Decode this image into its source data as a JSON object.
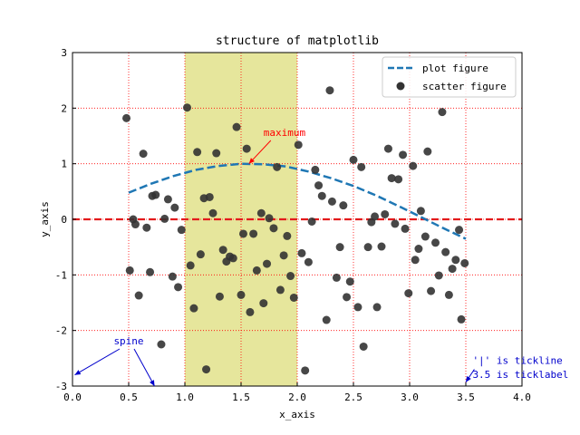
{
  "chart_data": {
    "type": "scatter",
    "title": "structure of matplotlib",
    "xlabel": "x_axis",
    "ylabel": "y_axis",
    "xlim": [
      0,
      4
    ],
    "ylim": [
      -3,
      3
    ],
    "xticks": [
      0.0,
      0.5,
      1.0,
      1.5,
      2.0,
      2.5,
      3.0,
      3.5,
      4.0
    ],
    "xtick_labels": [
      "0.0",
      "0.5",
      "1.0",
      "1.5",
      "2.0",
      "2.5",
      "3.0",
      "3.5",
      "4.0"
    ],
    "yticks": [
      -3,
      -2,
      -1,
      0,
      1,
      2,
      3
    ],
    "ytick_labels": [
      "-3",
      "-2",
      "-1",
      "0",
      "1",
      "2",
      "3"
    ],
    "grid": "dotted red",
    "span": {
      "x0": 1.0,
      "x1": 2.0,
      "color": "#e6e69c"
    },
    "hline": {
      "y": 0,
      "color": "#e31a1c",
      "style": "dashed"
    },
    "plot": {
      "name": "plot figure",
      "style": "dashed",
      "color": "#1f77b4",
      "x": [
        0.5,
        0.7,
        0.9,
        1.1,
        1.3,
        1.5,
        1.7,
        1.9,
        2.1,
        2.3,
        2.5,
        2.7,
        2.9,
        3.1,
        3.3,
        3.5
      ],
      "y": [
        0.48,
        0.64,
        0.78,
        0.89,
        0.96,
        1.0,
        0.99,
        0.95,
        0.86,
        0.74,
        0.6,
        0.43,
        0.24,
        0.04,
        -0.16,
        -0.35
      ]
    },
    "scatter": {
      "name": "scatter figure",
      "color": "#333333",
      "points": [
        [
          0.48,
          1.82
        ],
        [
          0.51,
          -0.92
        ],
        [
          0.54,
          0.0
        ],
        [
          0.56,
          -0.09
        ],
        [
          0.59,
          -1.37
        ],
        [
          0.63,
          1.18
        ],
        [
          0.66,
          -0.15
        ],
        [
          0.69,
          -0.95
        ],
        [
          0.71,
          0.42
        ],
        [
          0.74,
          0.44
        ],
        [
          0.79,
          -2.25
        ],
        [
          0.82,
          0.01
        ],
        [
          0.85,
          0.36
        ],
        [
          0.89,
          -1.03
        ],
        [
          0.91,
          0.21
        ],
        [
          0.94,
          -1.22
        ],
        [
          0.97,
          -0.19
        ],
        [
          1.02,
          2.01
        ],
        [
          1.05,
          -0.83
        ],
        [
          1.08,
          -1.6
        ],
        [
          1.11,
          1.21
        ],
        [
          1.14,
          -0.63
        ],
        [
          1.17,
          0.38
        ],
        [
          1.19,
          -2.7
        ],
        [
          1.22,
          0.4
        ],
        [
          1.25,
          0.11
        ],
        [
          1.28,
          1.19
        ],
        [
          1.31,
          -1.39
        ],
        [
          1.34,
          -0.55
        ],
        [
          1.37,
          -0.76
        ],
        [
          1.4,
          -0.67
        ],
        [
          1.43,
          -0.7
        ],
        [
          1.46,
          1.66
        ],
        [
          1.5,
          -1.36
        ],
        [
          1.52,
          -0.26
        ],
        [
          1.55,
          1.27
        ],
        [
          1.58,
          -1.67
        ],
        [
          1.61,
          -0.26
        ],
        [
          1.64,
          -0.92
        ],
        [
          1.68,
          0.11
        ],
        [
          1.7,
          -1.51
        ],
        [
          1.73,
          -0.8
        ],
        [
          1.75,
          0.02
        ],
        [
          1.79,
          -0.16
        ],
        [
          1.82,
          0.94
        ],
        [
          1.85,
          -1.27
        ],
        [
          1.88,
          -0.65
        ],
        [
          1.91,
          -0.3
        ],
        [
          1.94,
          -1.02
        ],
        [
          1.97,
          -1.41
        ],
        [
          2.01,
          1.34
        ],
        [
          2.04,
          -0.61
        ],
        [
          2.07,
          -2.72
        ],
        [
          2.1,
          -0.77
        ],
        [
          2.13,
          -0.04
        ],
        [
          2.16,
          0.89
        ],
        [
          2.19,
          0.61
        ],
        [
          2.22,
          0.42
        ],
        [
          2.26,
          -1.81
        ],
        [
          2.29,
          2.32
        ],
        [
          2.31,
          0.32
        ],
        [
          2.35,
          -1.05
        ],
        [
          2.38,
          -0.5
        ],
        [
          2.41,
          0.25
        ],
        [
          2.44,
          -1.4
        ],
        [
          2.47,
          -1.12
        ],
        [
          2.5,
          1.07
        ],
        [
          2.54,
          -1.58
        ],
        [
          2.57,
          0.94
        ],
        [
          2.59,
          -2.29
        ],
        [
          2.63,
          -0.5
        ],
        [
          2.66,
          -0.05
        ],
        [
          2.69,
          0.05
        ],
        [
          2.71,
          -1.58
        ],
        [
          2.75,
          -0.49
        ],
        [
          2.78,
          0.09
        ],
        [
          2.81,
          1.27
        ],
        [
          2.84,
          0.74
        ],
        [
          2.87,
          -0.08
        ],
        [
          2.9,
          0.72
        ],
        [
          2.94,
          1.16
        ],
        [
          2.96,
          -0.17
        ],
        [
          2.99,
          -1.33
        ],
        [
          3.03,
          0.96
        ],
        [
          3.05,
          -0.73
        ],
        [
          3.08,
          -0.53
        ],
        [
          3.1,
          0.15
        ],
        [
          3.14,
          -0.31
        ],
        [
          3.16,
          1.22
        ],
        [
          3.19,
          -1.29
        ],
        [
          3.23,
          -0.42
        ],
        [
          3.26,
          -1.01
        ],
        [
          3.29,
          1.93
        ],
        [
          3.32,
          -0.59
        ],
        [
          3.35,
          -1.36
        ],
        [
          3.38,
          -0.89
        ],
        [
          3.41,
          -0.73
        ],
        [
          3.44,
          -0.19
        ],
        [
          3.46,
          -1.8
        ],
        [
          3.49,
          -0.79
        ]
      ]
    },
    "legend": {
      "loc": "upper right",
      "entries": [
        {
          "label": "plot figure",
          "kind": "line",
          "color": "#1f77b4"
        },
        {
          "label": "scatter figure",
          "kind": "marker",
          "color": "#333333"
        }
      ]
    },
    "annotations": [
      {
        "text": "maximum",
        "color": "#ff0000",
        "text_at": [
          1.7,
          1.5
        ],
        "arrow_to": [
          1.57,
          1.0
        ]
      },
      {
        "text": "spine",
        "color": "#0000cc",
        "text_at": [
          0.5,
          -2.25
        ],
        "arrows_to": [
          [
            0.02,
            -2.8
          ],
          [
            0.73,
            -3.0
          ]
        ]
      },
      {
        "text": "'|' is tickline",
        "color": "#0000cc",
        "text_at": [
          3.56,
          -2.6
        ],
        "arrow_to": [
          3.5,
          -2.93
        ]
      },
      {
        "text": "3.5 is ticklabel",
        "color": "#0000cc",
        "text_at": [
          3.56,
          -2.85
        ]
      }
    ]
  }
}
